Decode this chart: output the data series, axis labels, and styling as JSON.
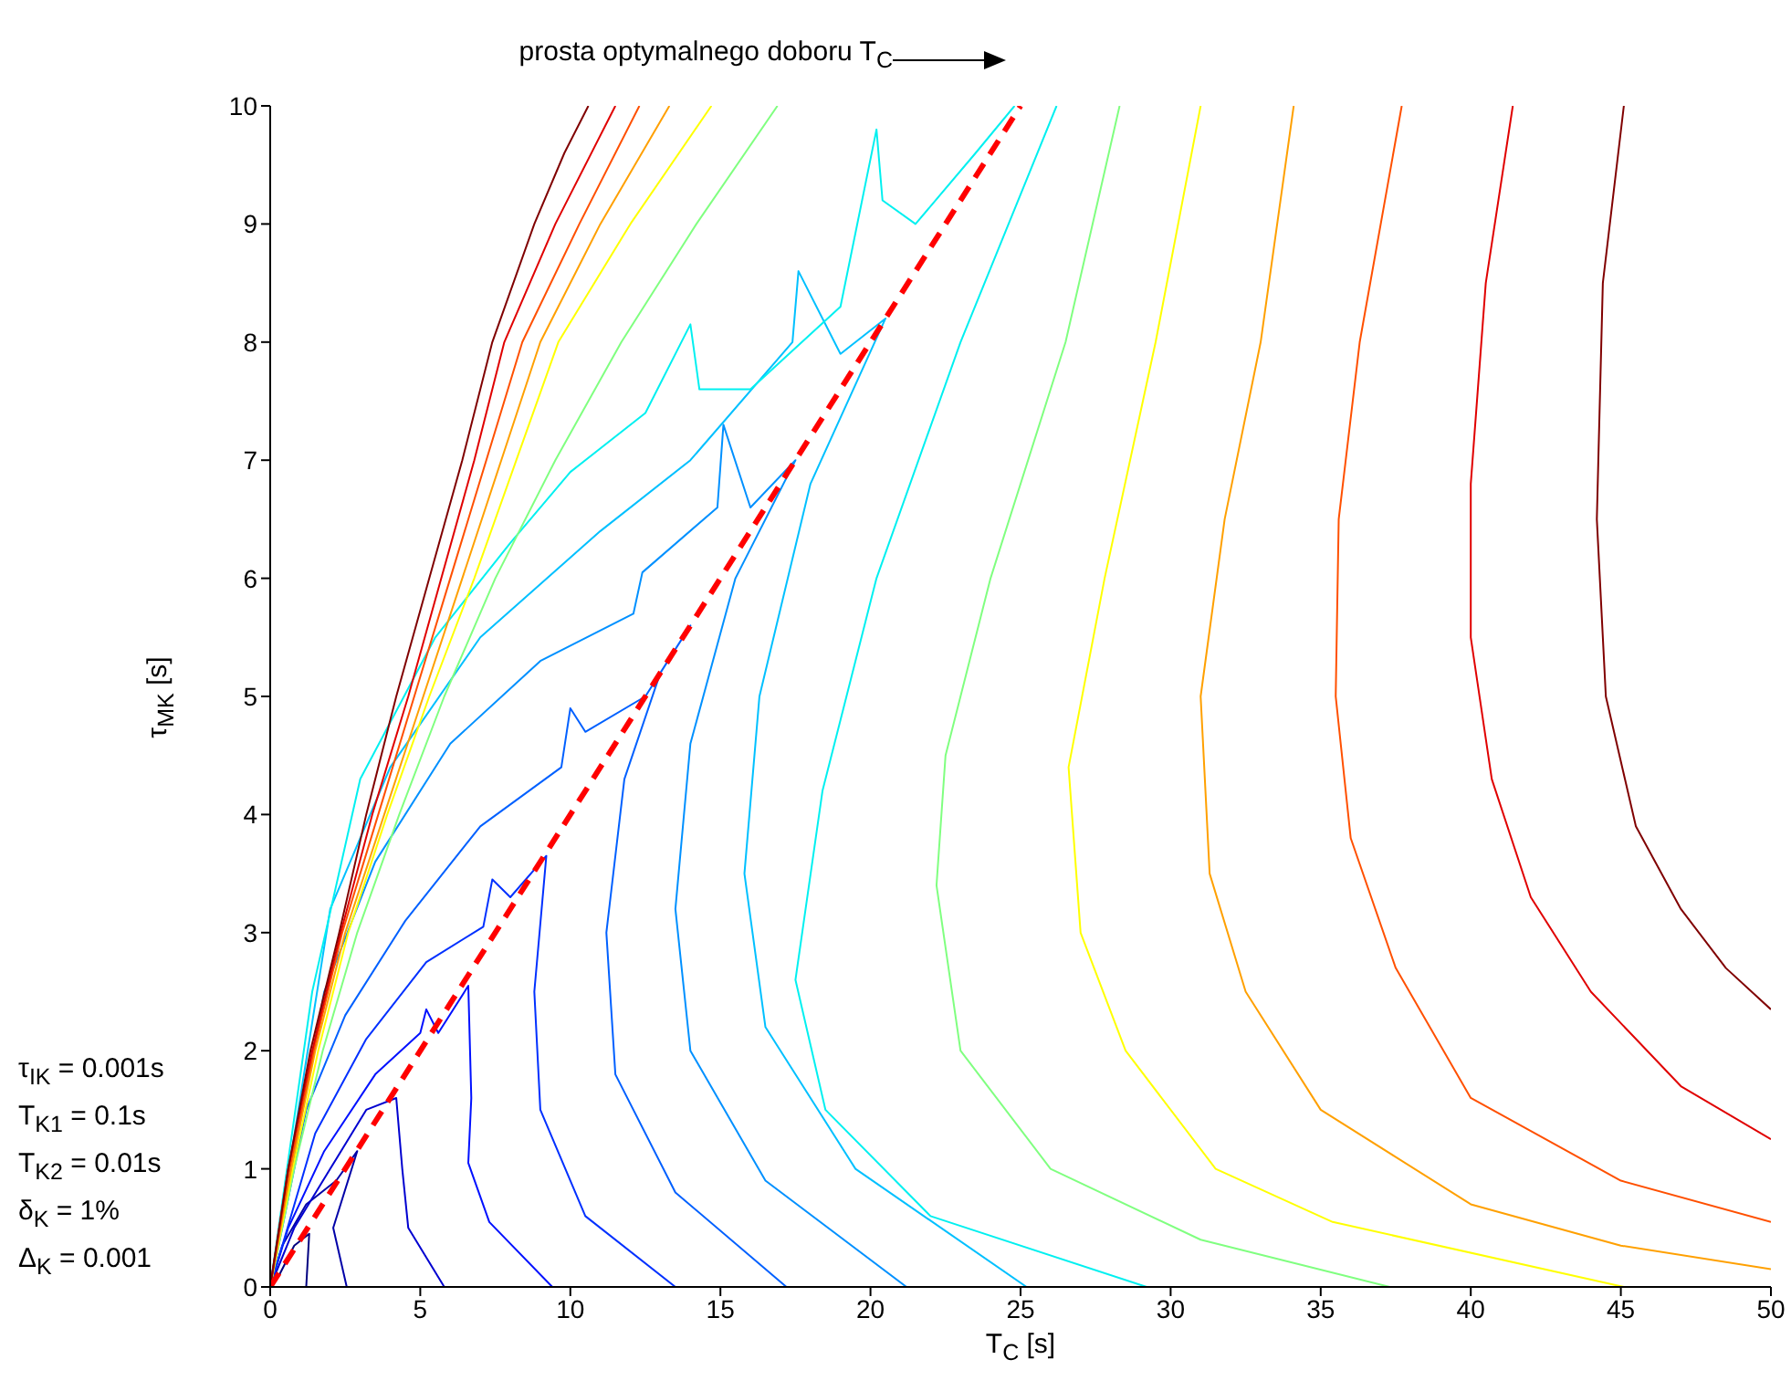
{
  "chart_data": {
    "type": "line",
    "xlabel": "T$_{C}$ [s]",
    "ylabel": "τ$_{MK}$ [s]",
    "xlim": [
      0,
      50
    ],
    "xticks": [
      0,
      5,
      10,
      15,
      20,
      25,
      30,
      35,
      40,
      45,
      50
    ],
    "ylim": [
      0,
      10
    ],
    "yticks": [
      0,
      1,
      2,
      3,
      4,
      5,
      6,
      7,
      8,
      9,
      10
    ],
    "marker": "none",
    "annotations": [
      "prosta optymalnego doboru T$_{C}$",
      "τ$_{IK}$ = 0.001s",
      "T$_{K1}$ = 0.1s",
      "T$_{K2}$ = 0.01s",
      "δ$_{K}$ = 1%",
      "Δ$_{K}$ = 0.001"
    ],
    "series": [
      {
        "color": "#000080",
        "x": [
          1.2,
          1.3,
          0.8,
          0.3,
          0
        ],
        "values": [
          0,
          0.45,
          0.35,
          0.1,
          0
        ]
      },
      {
        "color": "#0000a8",
        "x": [
          2.55,
          2.1,
          2.9,
          2.2,
          1.2,
          0.4,
          0
        ],
        "values": [
          0,
          0.5,
          1.15,
          0.9,
          0.7,
          0.35,
          0
        ]
      },
      {
        "color": "#0000d0",
        "x": [
          5.8,
          4.6,
          4.4,
          4.2,
          3.2,
          2,
          0.8,
          0
        ],
        "values": [
          0,
          0.5,
          1,
          1.6,
          1.5,
          1,
          0.5,
          0
        ]
      },
      {
        "color": "#0010ff",
        "x": [
          9.4,
          7.3,
          6.6,
          6.7,
          6.6,
          5.6,
          5.2,
          5,
          3.5,
          1.8,
          0.6,
          0
        ],
        "values": [
          0,
          0.55,
          1.05,
          1.6,
          2.55,
          2.15,
          2.35,
          2.15,
          1.8,
          1.15,
          0.5,
          0
        ]
      },
      {
        "color": "#0030ff",
        "x": [
          13.5,
          10.5,
          9,
          8.8,
          9.2,
          8,
          7.4,
          7.1,
          5.2,
          3.2,
          1.5,
          0
        ],
        "values": [
          0,
          0.6,
          1.5,
          2.5,
          3.65,
          3.3,
          3.45,
          3.05,
          2.75,
          2.1,
          1.3,
          0
        ]
      },
      {
        "color": "#0060ff",
        "x": [
          17.2,
          13.5,
          11.5,
          11.2,
          11.8,
          13,
          14,
          12.5,
          10.5,
          10,
          9.7,
          7,
          4.5,
          2.5,
          1.2,
          0
        ],
        "values": [
          0,
          0.8,
          1.8,
          3,
          4.3,
          5.2,
          5.6,
          5,
          4.7,
          4.9,
          4.4,
          3.9,
          3.1,
          2.3,
          1.5,
          0
        ]
      },
      {
        "color": "#0090ff",
        "x": [
          21.2,
          16.5,
          14,
          13.5,
          14,
          15.5,
          17.5,
          16,
          15.1,
          14.9,
          12.4,
          12.1,
          9,
          6,
          3.5,
          1.8,
          0
        ],
        "values": [
          0,
          0.9,
          2,
          3.2,
          4.6,
          6,
          7,
          6.6,
          7.3,
          6.6,
          6.05,
          5.7,
          5.3,
          4.6,
          3.6,
          2.5,
          0
        ]
      },
      {
        "color": "#00c0ff",
        "x": [
          25.2,
          19.5,
          16.5,
          15.8,
          16.3,
          18,
          20.5,
          19,
          17.6,
          17.4,
          14,
          11,
          7,
          4,
          2,
          0
        ],
        "values": [
          0,
          1,
          2.2,
          3.5,
          5,
          6.8,
          8.2,
          7.9,
          8.6,
          8,
          7,
          6.4,
          5.5,
          4.4,
          3.2,
          0
        ]
      },
      {
        "color": "#00f0f0",
        "x": [
          0,
          1.4,
          3,
          5.5,
          8,
          10,
          12.5,
          14,
          14.3,
          16,
          19,
          20.2,
          20.4,
          21.5,
          23.5,
          24.8
        ],
        "values": [
          0,
          2.5,
          4.3,
          5.5,
          6.3,
          6.9,
          7.4,
          8.15,
          7.6,
          7.6,
          8.3,
          9.8,
          9.2,
          9,
          9.6,
          10
        ]
      },
      {
        "color": "#00f0f0",
        "x": [
          26.2,
          23,
          20.2,
          18.4,
          17.5,
          18.5,
          22,
          29.2
        ],
        "values": [
          10,
          8,
          6,
          4.2,
          2.6,
          1.5,
          0.6,
          0
        ]
      },
      {
        "color": "#80ff80",
        "x": [
          0,
          0.8,
          1.75,
          2.9,
          4.3,
          5.8,
          7.5,
          9.5,
          11.7,
          14.2,
          16.9
        ],
        "values": [
          0,
          1,
          2,
          3,
          4,
          5,
          6,
          7,
          8,
          9,
          10
        ]
      },
      {
        "color": "#80ff80",
        "x": [
          28.3,
          26.5,
          24,
          22.5,
          22.2,
          23,
          26,
          31,
          37.3
        ],
        "values": [
          10,
          8,
          6,
          4.5,
          3.4,
          2,
          1,
          0.4,
          0
        ]
      },
      {
        "color": "#ffff00",
        "x": [
          0,
          0.75,
          1.6,
          2.6,
          3.9,
          5.3,
          6.8,
          8.2,
          9.6,
          12,
          14.7
        ],
        "values": [
          0,
          1,
          2,
          3,
          4,
          5,
          6,
          7,
          8,
          9,
          10
        ]
      },
      {
        "color": "#ffff00",
        "x": [
          31,
          29.5,
          27.8,
          26.6,
          27,
          28.5,
          31.5,
          35.4,
          45.1
        ],
        "values": [
          10,
          8,
          6,
          4.4,
          3,
          2,
          1,
          0.55,
          0
        ]
      },
      {
        "color": "#ffa000",
        "x": [
          0,
          0.7,
          1.5,
          2.5,
          3.8,
          5.1,
          6.4,
          7.7,
          9,
          11,
          13.3
        ],
        "values": [
          0,
          1,
          2,
          3,
          4,
          5,
          6,
          7,
          8,
          9,
          10
        ]
      },
      {
        "color": "#ffa000",
        "x": [
          34.1,
          33,
          31.8,
          31,
          31.3,
          32.5,
          35,
          40,
          45,
          50
        ],
        "values": [
          10,
          8,
          6.5,
          5,
          3.5,
          2.5,
          1.5,
          0.7,
          0.35,
          0.15
        ]
      },
      {
        "color": "#ff5000",
        "x": [
          0,
          0.65,
          1.45,
          2.4,
          3.6,
          4.8,
          6,
          7.2,
          8.4,
          10.3,
          12.3
        ],
        "values": [
          0,
          1,
          2,
          3,
          4,
          5,
          6,
          7,
          8,
          9,
          10
        ]
      },
      {
        "color": "#ff5000",
        "x": [
          37.7,
          36.3,
          35.6,
          35.5,
          36,
          37.5,
          40,
          45,
          50
        ],
        "values": [
          10,
          8,
          6.5,
          5,
          3.8,
          2.7,
          1.6,
          0.9,
          0.55
        ]
      },
      {
        "color": "#e00000",
        "x": [
          0,
          0.6,
          1.4,
          2.35,
          3.4,
          4.6,
          5.7,
          6.8,
          7.8,
          9.5,
          11.5
        ],
        "values": [
          0,
          1,
          2,
          3,
          4,
          5,
          6,
          7,
          8,
          9,
          10
        ]
      },
      {
        "color": "#e00000",
        "x": [
          41.4,
          40.5,
          40,
          40,
          40.7,
          42,
          44,
          47,
          50
        ],
        "values": [
          10,
          8.5,
          6.8,
          5.5,
          4.3,
          3.3,
          2.5,
          1.7,
          1.25
        ]
      },
      {
        "color": "#800000",
        "x": [
          0,
          0.6,
          1.34,
          2.3,
          3.2,
          4.2,
          5.3,
          6.4,
          7.4,
          8.8,
          9.8,
          10.6
        ],
        "values": [
          0,
          1,
          2,
          3,
          4,
          5,
          6,
          7,
          8,
          9,
          9.6,
          10
        ]
      },
      {
        "color": "#800000",
        "x": [
          45.1,
          44.4,
          44.2,
          44.5,
          45.5,
          47,
          48.5,
          50
        ],
        "values": [
          10,
          8.5,
          6.5,
          5,
          3.9,
          3.2,
          2.7,
          2.35
        ]
      },
      {
        "color": "#ff0000",
        "line_style": "dashed",
        "x": [
          0,
          25
        ],
        "values": [
          0,
          10
        ]
      }
    ]
  }
}
